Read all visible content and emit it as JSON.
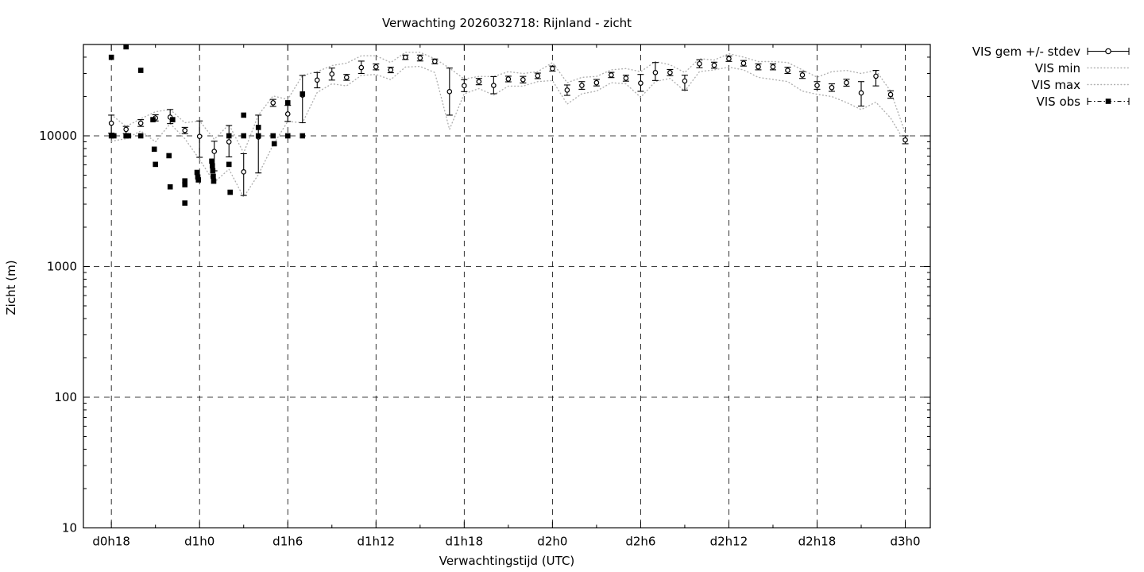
{
  "title": "Verwachting 2026032718: Rijnland - zicht",
  "colors": {
    "foreground": "#000000",
    "background": "#ffffff",
    "minmax_dotted": "#b0b0b0"
  },
  "chart_data": {
    "type": "scatter",
    "title": "Verwachting 2026032718: Rijnland - zicht",
    "xlabel": "Verwachtingstijd (UTC)",
    "ylabel": "Zicht (m)",
    "y_scale": "log10",
    "ylim": [
      10,
      50000
    ],
    "xlim_hours": [
      16.1,
      73.7
    ],
    "grid": {
      "x": true,
      "y": true
    },
    "x_major_ticks": {
      "hours": [
        18,
        24,
        30,
        36,
        42,
        48,
        54,
        60,
        66,
        72
      ],
      "labels": [
        "d0h18",
        "d1h0",
        "d1h6",
        "d1h12",
        "d1h18",
        "d2h0",
        "d2h6",
        "d2h12",
        "d2h18",
        "d3h0"
      ]
    },
    "x_minor_tick_hours": [
      21,
      27,
      33,
      39,
      45,
      51,
      57,
      63,
      69
    ],
    "y_major_ticks": {
      "values": [
        10,
        100,
        1000,
        10000
      ],
      "labels": [
        "10",
        "100",
        "1000",
        "10000"
      ]
    },
    "legend": {
      "position": "outside-top-right",
      "items": [
        {
          "label": "VIS gem +/- stdev",
          "style": "errorbar-circle"
        },
        {
          "label": "VIS min",
          "style": "dotted"
        },
        {
          "label": "VIS max",
          "style": "dotted"
        },
        {
          "label": "VIS obs",
          "style": "dashdot-square"
        }
      ]
    },
    "series": {
      "hours": [
        18,
        19,
        20,
        21,
        22,
        23,
        24,
        25,
        26,
        27,
        28,
        29,
        30,
        31,
        32,
        33,
        34,
        35,
        36,
        37,
        38,
        39,
        40,
        41,
        42,
        43,
        44,
        45,
        46,
        47,
        48,
        49,
        50,
        51,
        52,
        53,
        54,
        55,
        56,
        57,
        58,
        59,
        60,
        61,
        62,
        63,
        64,
        65,
        66,
        67,
        68,
        69,
        70,
        71,
        72
      ],
      "vis_gem": [
        12500,
        11200,
        12500,
        13700,
        13900,
        11000,
        9900,
        7600,
        9000,
        5300,
        9800,
        17900,
        14700,
        20500,
        26700,
        29700,
        28000,
        33300,
        33700,
        31900,
        39900,
        39400,
        37100,
        21800,
        24200,
        26000,
        24300,
        27200,
        26900,
        28800,
        32700,
        22400,
        24300,
        25500,
        29200,
        27600,
        25300,
        30500,
        30500,
        26300,
        35600,
        34700,
        38900,
        35900,
        33700,
        33700,
        31700,
        29200,
        24300,
        23400,
        25500,
        21300,
        28600,
        20700,
        9300
      ],
      "vis_stdev_hi": [
        14400,
        11800,
        13300,
        14500,
        15900,
        11600,
        13000,
        9100,
        12000,
        7300,
        14400,
        19000,
        17100,
        29000,
        30500,
        33000,
        29500,
        37300,
        35500,
        33500,
        41500,
        41500,
        38700,
        33000,
        26900,
        27500,
        28400,
        28600,
        28500,
        30200,
        34200,
        24500,
        26000,
        27000,
        30600,
        29100,
        29500,
        36400,
        32200,
        29100,
        38200,
        36600,
        40800,
        37700,
        35500,
        35500,
        33500,
        31000,
        26000,
        25000,
        27100,
        26000,
        31700,
        22100,
        10000
      ],
      "vis_stdev_lo": [
        10500,
        10400,
        11800,
        13000,
        12400,
        10400,
        6850,
        5400,
        6900,
        3500,
        5200,
        16800,
        12900,
        12600,
        23300,
        26700,
        26600,
        30000,
        32000,
        30400,
        38400,
        37400,
        35600,
        14400,
        21800,
        24600,
        21000,
        25900,
        25400,
        27400,
        31300,
        20400,
        22700,
        24100,
        27900,
        26200,
        21900,
        26500,
        28900,
        22400,
        33200,
        32900,
        37100,
        34200,
        32000,
        32000,
        30000,
        27500,
        22700,
        21900,
        24000,
        16900,
        24100,
        19400,
        8700
      ],
      "vis_min": [
        9100,
        9500,
        10900,
        9000,
        12400,
        9500,
        6600,
        4400,
        5550,
        3400,
        5050,
        8500,
        12900,
        12600,
        21500,
        25000,
        24100,
        29000,
        29500,
        26900,
        33600,
        34000,
        30500,
        11200,
        21000,
        23000,
        20500,
        24000,
        24000,
        26000,
        26500,
        17500,
        21000,
        22000,
        25500,
        25000,
        19700,
        26000,
        27500,
        22000,
        31000,
        32000,
        33500,
        32000,
        28000,
        27000,
        26000,
        22000,
        20800,
        20000,
        18000,
        15900,
        18100,
        13700,
        8900
      ],
      "vis_max": [
        14500,
        11800,
        13500,
        15300,
        15900,
        12600,
        13000,
        9400,
        12200,
        7400,
        14400,
        20200,
        19000,
        29000,
        31000,
        34500,
        36000,
        41000,
        41000,
        36400,
        43500,
        43500,
        38900,
        33000,
        27200,
        28500,
        28400,
        31000,
        30000,
        31000,
        36400,
        25500,
        28000,
        28500,
        32000,
        32700,
        31000,
        37000,
        35000,
        30500,
        39000,
        38000,
        42500,
        40000,
        37000,
        37000,
        36400,
        32000,
        28100,
        31000,
        31700,
        30000,
        31700,
        22000,
        10500
      ]
    },
    "vis_obs_points": [
      [
        18.0,
        39900
      ],
      [
        18.0,
        10000
      ],
      [
        18.17,
        10000
      ],
      [
        19.0,
        48000
      ],
      [
        19.0,
        10000
      ],
      [
        19.17,
        10000
      ],
      [
        20.0,
        31700
      ],
      [
        20.0,
        10000
      ],
      [
        20.83,
        13300
      ],
      [
        20.92,
        7900
      ],
      [
        21.0,
        6050
      ],
      [
        21.92,
        7050
      ],
      [
        22.0,
        4070
      ],
      [
        22.17,
        13300
      ],
      [
        23.0,
        4520
      ],
      [
        23.0,
        4230
      ],
      [
        23.0,
        3060
      ],
      [
        23.83,
        5250
      ],
      [
        23.88,
        4850
      ],
      [
        23.92,
        4600
      ],
      [
        24.83,
        6400
      ],
      [
        24.87,
        5900
      ],
      [
        24.9,
        5400
      ],
      [
        24.93,
        4900
      ],
      [
        24.96,
        4500
      ],
      [
        26.0,
        10000
      ],
      [
        26.0,
        6050
      ],
      [
        26.08,
        3700
      ],
      [
        27.0,
        14400
      ],
      [
        27.0,
        10000
      ],
      [
        28.0,
        11600
      ],
      [
        28.0,
        10000
      ],
      [
        29.0,
        10000
      ],
      [
        29.08,
        8700
      ],
      [
        30.0,
        17900
      ],
      [
        30.0,
        10000
      ],
      [
        31.0,
        20900
      ],
      [
        31.0,
        10000
      ]
    ]
  }
}
